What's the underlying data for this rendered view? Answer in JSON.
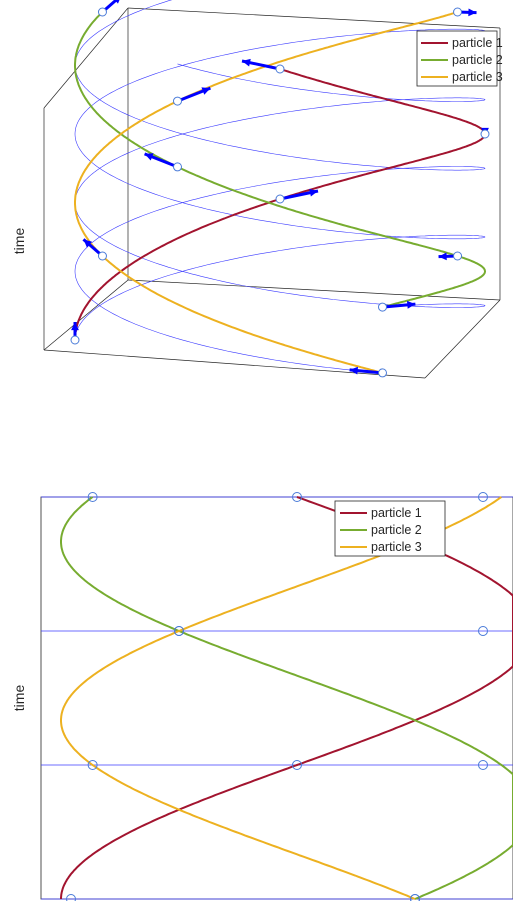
{
  "colors": {
    "particle_1": "#a2142f",
    "particle_2": "#77ac30",
    "particle_3": "#edb120",
    "helix": "#3b3bff",
    "arrow": "#0000ff",
    "frame": "#262626",
    "marker": "#4a7bd8"
  },
  "chart_data": [
    {
      "type": "line",
      "view": "3d",
      "ylabel": "time",
      "xlabel": "",
      "title": "",
      "grid": false,
      "legend_position": "top-right",
      "legend": [
        "particle 1",
        "particle 2",
        "particle 3"
      ],
      "cycles": 1.5,
      "revolutions_per_cycle": 1,
      "series": [
        {
          "name": "particle 1",
          "phase_deg": 0,
          "color_key": "particle_1"
        },
        {
          "name": "particle 2",
          "phase_deg": 120,
          "color_key": "particle_2"
        },
        {
          "name": "particle 3",
          "phase_deg": 240,
          "color_key": "particle_3"
        }
      ],
      "sample_times": [
        0,
        0.5,
        1.0,
        1.5
      ],
      "markers": "circle at each particle per sample time",
      "arrows": "blue velocity arrow at each marker"
    },
    {
      "type": "line",
      "view": "2d side projection",
      "ylabel": "time",
      "xlabel": "",
      "title": "",
      "grid": false,
      "legend_position": "top-right",
      "legend": [
        "particle 1",
        "particle 2",
        "particle 3"
      ],
      "cycles": 1.5,
      "series": [
        {
          "name": "particle 1",
          "phase_deg": 0,
          "color_key": "particle_1"
        },
        {
          "name": "particle 2",
          "phase_deg": 120,
          "color_key": "particle_2"
        },
        {
          "name": "particle 3",
          "phase_deg": 240,
          "color_key": "particle_3"
        }
      ],
      "sample_times": [
        0,
        0.5,
        1.0,
        1.5
      ],
      "horizontal_lines_at": [
        0,
        0.5,
        1.0,
        1.5
      ]
    }
  ]
}
